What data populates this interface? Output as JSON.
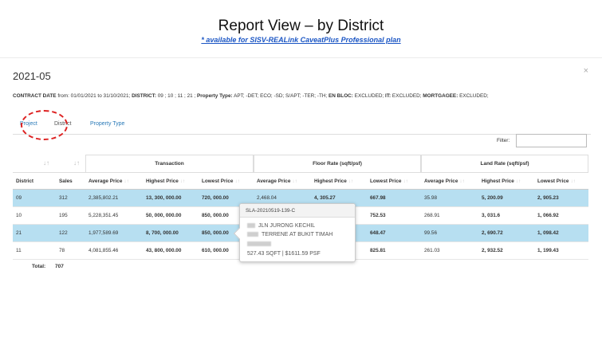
{
  "header": {
    "title": "Report View – by District",
    "subtitle": "* available for SISV-REALink CaveatPlus Professional plan"
  },
  "panel": {
    "period": "2021-05",
    "close_icon": "close-icon",
    "close_glyph": "×"
  },
  "filters": {
    "contract_date_label": "CONTRACT DATE",
    "contract_date_value": " from: 01/01/2021 to 31/10/2021; ",
    "district_label": "DISTRICT:",
    "district_value": " 09 ; 10 ; 11 ; 21 ; ",
    "property_type_label": "Property Type:",
    "property_type_value": " APT; -DET; ECO; -SD; S/APT; -TER; -TH; ",
    "en_bloc_label": "EN BLOC:",
    "en_bloc_value": " EXCLUDED; ",
    "it_label": "IT:",
    "it_value": " EXCLUDED; ",
    "mortgagee_label": "MORTGAGEE:",
    "mortgagee_value": " EXCLUDED;"
  },
  "tabs": [
    {
      "label": "Project"
    },
    {
      "label": "District"
    },
    {
      "label": "Property Type"
    }
  ],
  "filter_box": {
    "label": "Filter:",
    "value": ""
  },
  "table": {
    "groups": [
      "Transaction",
      "Floor Rate (sqft/psf)",
      "Land Rate (sqft/psf)"
    ],
    "sort_glyph": "↓↑",
    "columns": [
      "District",
      "Sales",
      "Average Price",
      "Highest Price",
      "Lowest Price",
      "Average Price",
      "Highest Price",
      "Lowest Price",
      "Average Price",
      "Highest Price",
      "Lowest Price"
    ],
    "rows": [
      {
        "highlight": true,
        "cells": [
          "09",
          "312",
          "2,385,802.21",
          "13, 300, 000.00",
          "720, 000.00",
          "2,468.04",
          "4, 305.27",
          "667.98",
          "35.98",
          "5, 200.09",
          "2, 905.23"
        ]
      },
      {
        "highlight": false,
        "cells": [
          "10",
          "195",
          "5,228,351.45",
          "50, 000, 000.00",
          "850, 000.00",
          "",
          "",
          "752.53",
          "268.91",
          "3, 031.6",
          "1, 066.92"
        ]
      },
      {
        "highlight": true,
        "cells": [
          "21",
          "122",
          "1,977,589.69",
          "8, 700, 000.00",
          "850, 000.00",
          "",
          "",
          "648.47",
          "99.56",
          "2, 690.72",
          "1, 098.42"
        ]
      },
      {
        "highlight": false,
        "cells": [
          "11",
          "78",
          "4,081,855.46",
          "43, 800, 000.00",
          "610, 000.00",
          "",
          "",
          "825.81",
          "261.03",
          "2, 932.52",
          "1, 199.43"
        ]
      }
    ],
    "total_label": "Total:",
    "total_value": "707"
  },
  "tooltip": {
    "title": "SLA-20210519-139-C",
    "line1": "JLN JURONG KECHIL",
    "line2": "TERRENE AT BUKIT TIMAH",
    "line3": "527.43 SQFT | $1611.59 PSF"
  },
  "colors": {
    "highlight_row": "#b7dff1",
    "link": "#2a7ab8",
    "annotation": "#dd2222"
  }
}
